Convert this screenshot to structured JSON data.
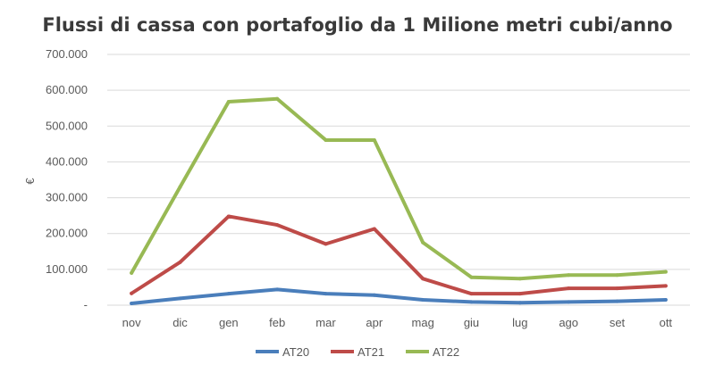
{
  "chart_data": {
    "type": "line",
    "title": "Flussi di cassa con portafoglio da 1 Milione metri cubi/anno",
    "xlabel": "",
    "ylabel": "€",
    "categories": [
      "nov",
      "dic",
      "gen",
      "feb",
      "mar",
      "apr",
      "mag",
      "giu",
      "lug",
      "ago",
      "set",
      "ott"
    ],
    "ylim": [
      0,
      700000
    ],
    "yticks": [
      0,
      100000,
      200000,
      300000,
      400000,
      500000,
      600000,
      700000
    ],
    "ytick_labels": [
      "-",
      "100.000",
      "200.000",
      "300.000",
      "400.000",
      "500.000",
      "600.000",
      "700.000"
    ],
    "grid": true,
    "legend_position": "bottom",
    "series": [
      {
        "name": "AT20",
        "color": "#4a7ebb",
        "values": [
          5000,
          19000,
          32000,
          44000,
          32000,
          28000,
          15000,
          9000,
          7000,
          9000,
          11000,
          15000
        ]
      },
      {
        "name": "AT21",
        "color": "#be4b48",
        "values": [
          33000,
          120000,
          248000,
          224000,
          171000,
          213000,
          74000,
          32000,
          32000,
          47000,
          47000,
          54000
        ]
      },
      {
        "name": "AT22",
        "color": "#98b954",
        "values": [
          90000,
          330000,
          568000,
          576000,
          461000,
          461000,
          175000,
          78000,
          74000,
          84000,
          84000,
          93000
        ]
      }
    ]
  }
}
